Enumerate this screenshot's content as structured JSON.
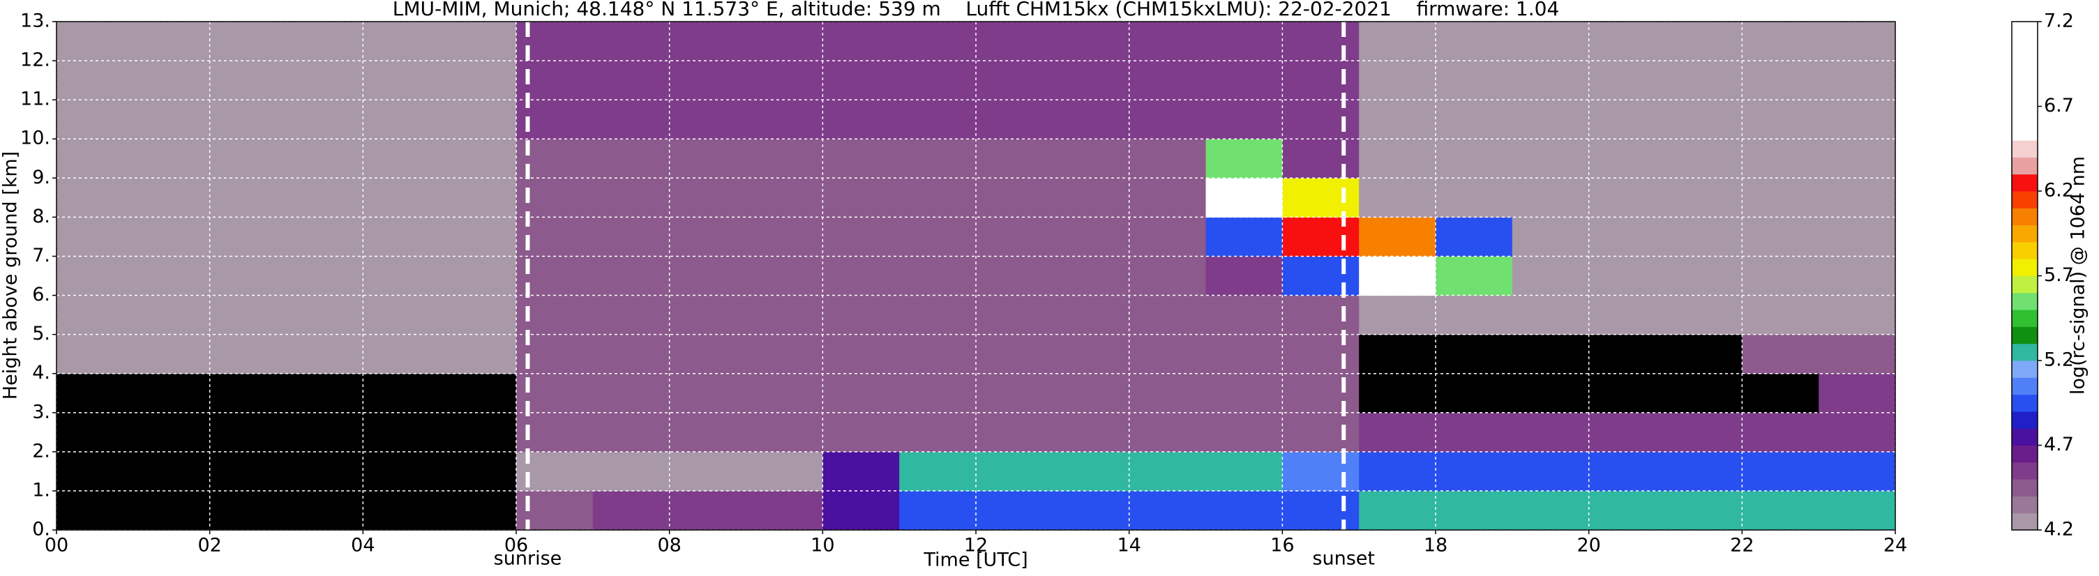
{
  "chart_data": {
    "type": "heatmap",
    "title": "LMU-MIM, Munich; 48.148° N 11.573° E, altitude: 539 m    Lufft CHM15kx (CHM15kxLMU): 22-02-2021    firmware: 1.04",
    "x_label": "Time [UTC]",
    "y_label": "Height above ground [km]",
    "colorbar_label": "log(rc-signal) @ 1064 nm",
    "xlim": [
      0,
      24
    ],
    "ylim": [
      0,
      13
    ],
    "xticks": [
      {
        "value": 0,
        "label": "00"
      },
      {
        "value": 2,
        "label": "02"
      },
      {
        "value": 4,
        "label": "04"
      },
      {
        "value": 6,
        "label": "06"
      },
      {
        "value": 8,
        "label": "08"
      },
      10,
      12,
      14,
      16,
      18,
      20,
      22,
      24
    ],
    "yticks": [
      {
        "value": 0,
        "label": "0."
      },
      {
        "value": 1,
        "label": "1."
      },
      {
        "value": 2,
        "label": "2."
      },
      {
        "value": 3,
        "label": "3."
      },
      {
        "value": 4,
        "label": "4."
      },
      {
        "value": 5,
        "label": "5."
      },
      {
        "value": 6,
        "label": "6."
      },
      {
        "value": 7,
        "label": "7."
      },
      {
        "value": 8,
        "label": "8."
      },
      {
        "value": 9,
        "label": "9."
      },
      {
        "value": 10,
        "label": "10."
      },
      {
        "value": 11,
        "label": "11."
      },
      {
        "value": 12,
        "label": "12."
      },
      {
        "value": 13,
        "label": "13."
      }
    ],
    "grid": true,
    "grid_color": "#ffffff",
    "under_color": "#000000",
    "clim": [
      4.2,
      7.2
    ],
    "cticks": [
      4.2,
      4.7,
      5.2,
      5.7,
      6.2,
      6.7,
      7.2
    ],
    "colorscale": [
      "#a898a8",
      "#9a7898",
      "#8c5a8c",
      "#7e3c8a",
      "#6a1e8c",
      "#4a10a0",
      "#2020c8",
      "#2850f0",
      "#5080f8",
      "#80a8f8",
      "#30b8a0",
      "#109010",
      "#30c030",
      "#70e070",
      "#c0f040",
      "#f0f000",
      "#f8d000",
      "#f8a800",
      "#f88000",
      "#f84000",
      "#f81010",
      "#e8a0a0",
      "#f4d0d0",
      "#ffffff",
      "#ffffff",
      "#ffffff",
      "#ffffff",
      "#ffffff",
      "#ffffff",
      "#ffffff"
    ],
    "annotations": [
      {
        "x": 6.15,
        "label": "sunrise"
      },
      {
        "x": 16.8,
        "label": "sunset"
      }
    ],
    "z": [
      [
        4.0,
        4.0,
        4.0,
        4.0,
        4.0,
        4.0,
        4.5,
        4.6,
        4.6,
        4.6,
        4.8,
        5.0,
        5.0,
        5.0,
        5.0,
        5.0,
        5.0,
        5.3,
        5.3,
        5.3,
        5.3,
        5.3,
        5.3,
        5.3
      ],
      [
        4.0,
        4.0,
        4.0,
        4.0,
        4.0,
        4.0,
        4.3,
        4.3,
        4.3,
        4.3,
        4.8,
        5.3,
        5.3,
        5.3,
        5.3,
        5.3,
        5.1,
        5.0,
        5.0,
        5.0,
        5.0,
        5.0,
        5.0,
        5.0
      ],
      [
        4.0,
        4.0,
        4.0,
        4.0,
        4.0,
        4.0,
        4.4,
        4.4,
        4.4,
        4.4,
        4.4,
        4.4,
        4.4,
        4.4,
        4.4,
        4.4,
        4.4,
        4.6,
        4.6,
        4.6,
        4.6,
        4.6,
        4.6,
        4.6
      ],
      [
        4.1,
        4.1,
        4.1,
        4.1,
        4.1,
        4.1,
        4.4,
        4.4,
        4.4,
        4.4,
        4.4,
        4.4,
        4.4,
        4.4,
        4.4,
        4.4,
        4.4,
        4.0,
        4.0,
        4.0,
        4.0,
        4.0,
        4.0,
        4.6
      ],
      [
        4.2,
        4.2,
        4.2,
        4.2,
        4.2,
        4.2,
        4.5,
        4.5,
        4.5,
        4.5,
        4.5,
        4.5,
        4.5,
        4.5,
        4.5,
        4.5,
        4.5,
        4.0,
        4.0,
        4.0,
        4.0,
        4.0,
        4.5,
        4.5
      ],
      [
        4.3,
        4.3,
        4.3,
        4.3,
        4.3,
        4.3,
        4.5,
        4.5,
        4.5,
        4.5,
        4.5,
        4.5,
        4.5,
        4.5,
        4.5,
        4.5,
        4.5,
        4.3,
        4.3,
        4.3,
        4.3,
        4.3,
        4.3,
        4.3
      ],
      [
        4.3,
        4.3,
        4.3,
        4.3,
        4.3,
        4.3,
        4.5,
        4.5,
        4.5,
        4.5,
        4.5,
        4.5,
        4.5,
        4.5,
        4.5,
        4.6,
        5.0,
        6.5,
        5.6,
        4.3,
        4.3,
        4.3,
        4.3,
        4.3
      ],
      [
        4.3,
        4.3,
        4.3,
        4.3,
        4.3,
        4.3,
        4.5,
        4.5,
        4.5,
        4.5,
        4.5,
        4.5,
        4.5,
        4.5,
        4.5,
        5.0,
        6.3,
        6.0,
        5.0,
        4.3,
        4.3,
        4.3,
        4.3,
        4.3
      ],
      [
        4.3,
        4.3,
        4.3,
        4.3,
        4.3,
        4.3,
        4.5,
        4.5,
        4.5,
        4.5,
        4.5,
        4.5,
        4.5,
        4.5,
        4.5,
        6.8,
        5.8,
        4.3,
        4.3,
        4.3,
        4.3,
        4.3,
        4.3,
        4.3
      ],
      [
        4.3,
        4.3,
        4.3,
        4.3,
        4.3,
        4.3,
        4.5,
        4.5,
        4.5,
        4.5,
        4.5,
        4.5,
        4.5,
        4.5,
        4.5,
        5.6,
        4.6,
        4.3,
        4.3,
        4.3,
        4.3,
        4.3,
        4.3,
        4.3
      ],
      [
        4.3,
        4.3,
        4.3,
        4.3,
        4.3,
        4.3,
        4.6,
        4.6,
        4.6,
        4.6,
        4.6,
        4.6,
        4.6,
        4.6,
        4.6,
        4.6,
        4.6,
        4.3,
        4.3,
        4.3,
        4.3,
        4.3,
        4.3,
        4.3
      ],
      [
        4.3,
        4.3,
        4.3,
        4.3,
        4.3,
        4.3,
        4.6,
        4.6,
        4.6,
        4.6,
        4.6,
        4.6,
        4.6,
        4.6,
        4.6,
        4.6,
        4.6,
        4.3,
        4.3,
        4.3,
        4.3,
        4.3,
        4.3,
        4.3
      ],
      [
        4.3,
        4.3,
        4.3,
        4.3,
        4.3,
        4.3,
        4.6,
        4.6,
        4.6,
        4.6,
        4.6,
        4.6,
        4.6,
        4.6,
        4.6,
        4.6,
        4.6,
        4.3,
        4.3,
        4.3,
        4.3,
        4.3,
        4.3,
        4.3
      ]
    ]
  }
}
